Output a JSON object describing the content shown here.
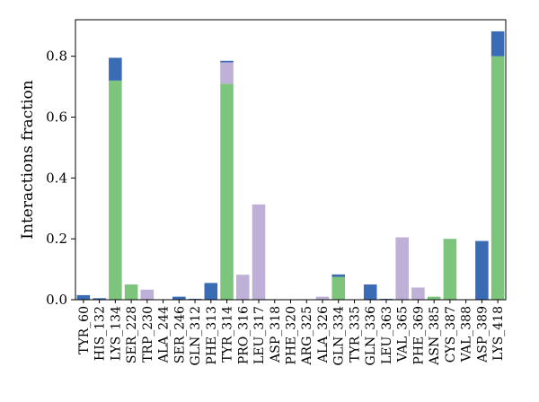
{
  "chart_data": {
    "type": "bar",
    "stacked": true,
    "ylabel": "Interactions fraction",
    "xlabel": "",
    "ylim": [
      0,
      0.92
    ],
    "yticks": [
      0.0,
      0.2,
      0.4,
      0.6,
      0.8
    ],
    "ytick_labels": [
      "0.0",
      "0.2",
      "0.4",
      "0.6",
      "0.8"
    ],
    "grid": false,
    "categories": [
      "TYR_60",
      "HIS_132",
      "LYS_134",
      "SER_228",
      "TRP_230",
      "ALA_244",
      "SER_246",
      "GLN_312",
      "PHE_313",
      "TYR_314",
      "PRO_316",
      "LEU_317",
      "ASP_318",
      "PHE_320",
      "ARG_325",
      "ALA_326",
      "GLN_334",
      "TYR_335",
      "GLN_336",
      "LEU_363",
      "VAL_365",
      "PHE_369",
      "ASN_385",
      "CYS_387",
      "VAL_388",
      "ASP_389",
      "LYS_418"
    ],
    "series": [
      {
        "color": "#7dc57d",
        "values": [
          0,
          0,
          0.72,
          0.05,
          0,
          0,
          0,
          0,
          0,
          0.71,
          0,
          0,
          0,
          0,
          0,
          0,
          0.075,
          0,
          0,
          0,
          0,
          0,
          0.01,
          0.2,
          0,
          0,
          0.8
        ]
      },
      {
        "color": "#beb0d6",
        "values": [
          0,
          0,
          0,
          0,
          0.033,
          0,
          0,
          0,
          0,
          0.07,
          0.082,
          0.313,
          0,
          0,
          0,
          0.01,
          0,
          0,
          0,
          0,
          0.205,
          0.04,
          0,
          0,
          0,
          0,
          0
        ]
      },
      {
        "color": "#3a6bb5",
        "values": [
          0.015,
          0.005,
          0.075,
          0,
          0,
          0,
          0.01,
          0.003,
          0.055,
          0.005,
          0,
          0,
          0,
          0,
          0,
          0,
          0.008,
          0,
          0.05,
          0.003,
          0,
          0,
          0,
          0,
          0,
          0.193,
          0.082
        ]
      }
    ]
  }
}
